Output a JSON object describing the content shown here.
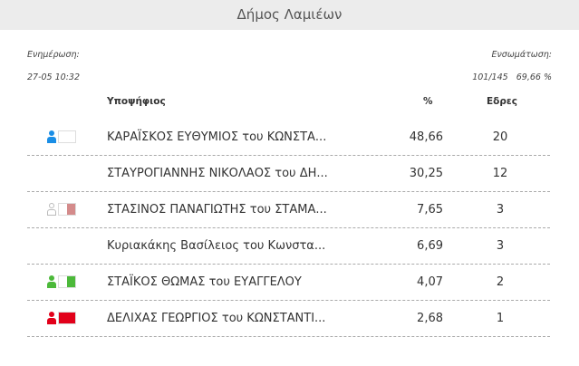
{
  "title": "Δήμος Λαμιέων",
  "update_label": "Ενημέρωση:",
  "update_time": "27-05 10:32",
  "integration_label": "Ενσωμάτωση:",
  "integration_value": "101/145   69,66 %",
  "columns": {
    "candidate": "Υποψήφιος",
    "pct": "%",
    "seats": "Εδρες"
  },
  "rows": [
    {
      "name": "ΚΑΡΑΪΣΚΟΣ ΕΥΘΥΜΙΟΣ του ΚΩΝΣΤΑ...",
      "pct": "48,66",
      "seats": "20",
      "color": "#1a8ee6",
      "icon": true,
      "fill": 0,
      "outline": false
    },
    {
      "name": "ΣΤΑΥΡΟΓΙΑΝΝΗΣ ΝΙΚΟΛΑΟΣ του ΔΗ...",
      "pct": "30,25",
      "seats": "12",
      "icon": false
    },
    {
      "name": "ΣΤΑΣΙΝΟΣ ΠΑΝΑΓΙΩΤΗΣ του ΣΤΑΜΑ...",
      "pct": "7,65",
      "seats": "3",
      "color": "#d48b8b",
      "icon": true,
      "fill": 0.5,
      "outline": true
    },
    {
      "name": "Κυριακάκης Βασίλειος του Κωνστα...",
      "pct": "6,69",
      "seats": "3",
      "icon": false
    },
    {
      "name": "ΣΤΑΪΚΟΣ ΘΩΜΑΣ του ΕΥΑΓΓΕΛΟΥ",
      "pct": "4,07",
      "seats": "2",
      "color": "#4cb93a",
      "icon": true,
      "fill": 0.5,
      "outline": false
    },
    {
      "name": "ΔΕΛΙΧΑΣ ΓΕΩΡΓΙΟΣ του ΚΩΝΣΤΑΝΤΙ...",
      "pct": "2,68",
      "seats": "1",
      "color": "#e2001a",
      "icon": true,
      "fill": 1,
      "outline": false
    }
  ]
}
